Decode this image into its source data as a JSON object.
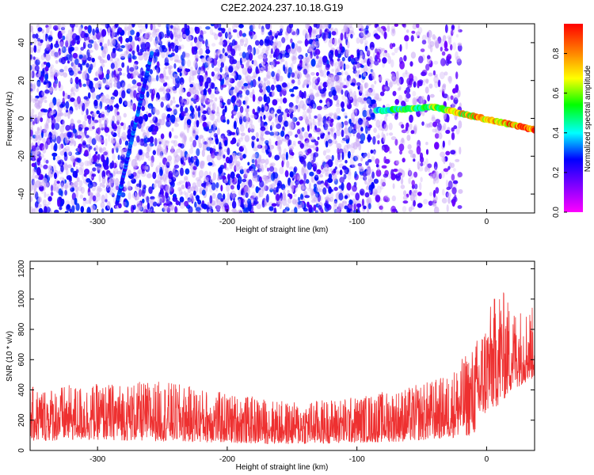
{
  "title": "C2E2.2024.237.10.18.G19",
  "chart_data": [
    {
      "type": "heatmap",
      "xlabel": "Height of straight line (km)",
      "ylabel": "Frequency (Hz)",
      "xlim": [
        -352,
        37
      ],
      "ylim": [
        -50,
        50
      ],
      "xticks": [
        -300,
        -200,
        -100,
        0
      ],
      "yticks": [
        -40,
        -20,
        0,
        20,
        40
      ],
      "colorbar": {
        "label": "Normalized spectral amplitude",
        "range": [
          0,
          0.95
        ],
        "ticks": [
          "0.0",
          "0.2",
          "0.4",
          "0.6",
          "0.8"
        ],
        "colormap": [
          "#ff00ff",
          "#8000ff",
          "#0000ff",
          "#00ffff",
          "#00ff00",
          "#ffff00",
          "#ff8000",
          "#ff0000"
        ]
      },
      "features": [
        {
          "kind": "noise",
          "x_range": [
            -352,
            -85
          ],
          "y_range": [
            -50,
            50
          ],
          "amplitude": 0.1
        },
        {
          "kind": "noise",
          "x_range": [
            -85,
            -20
          ],
          "y_range": [
            -50,
            50
          ],
          "amplitude": 0.05
        },
        {
          "kind": "line",
          "points": [
            [
              -285,
              -45
            ],
            [
              -258,
              35
            ]
          ],
          "amplitude": 0.3
        },
        {
          "kind": "line",
          "points": [
            [
              -85,
              4
            ],
            [
              -40,
              6
            ],
            [
              -10,
              1
            ],
            [
              10,
              -2
            ],
            [
              37,
              -6
            ]
          ],
          "amplitude": 0.85
        }
      ]
    },
    {
      "type": "line",
      "xlabel": "Height of straight line (km)",
      "ylabel": "SNR (10 * v/v)",
      "xlim": [
        -352,
        37
      ],
      "ylim": [
        0,
        1250
      ],
      "xticks": [
        -300,
        -200,
        -100,
        0
      ],
      "yticks": [
        0,
        200,
        400,
        600,
        800,
        1000,
        1200
      ],
      "series": [
        {
          "color": "#ee3030",
          "envelope": {
            "x": [
              -352,
              -300,
              -250,
              -200,
              -150,
              -100,
              -60,
              -30,
              -10,
              0,
              10,
              20,
              37
            ],
            "low": [
              60,
              70,
              60,
              50,
              40,
              50,
              60,
              80,
              100,
              250,
              300,
              400,
              480
            ],
            "high": [
              420,
              440,
              460,
              380,
              320,
              360,
              420,
              500,
              700,
              900,
              1100,
              950,
              950
            ]
          }
        }
      ]
    }
  ]
}
